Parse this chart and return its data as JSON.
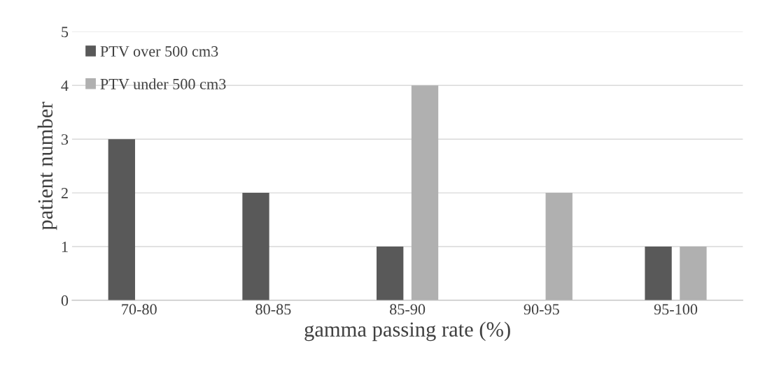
{
  "chart_data": {
    "type": "bar",
    "xlabel": "gamma passing rate (%)",
    "ylabel": "patient number",
    "categories": [
      "70-80",
      "80-85",
      "85-90",
      "90-95",
      "95-100"
    ],
    "series": [
      {
        "name": "PTV over 500 cm3",
        "color": "#595959",
        "values": [
          3,
          2,
          1,
          0,
          1
        ]
      },
      {
        "name": "PTV under 500 cm3",
        "color": "#b0b0b0",
        "values": [
          0,
          0,
          4,
          2,
          1
        ]
      }
    ],
    "ylim": [
      0,
      5
    ],
    "yticks": [
      0,
      1,
      2,
      3,
      4,
      5
    ],
    "grid": "y",
    "legend": "top left"
  }
}
